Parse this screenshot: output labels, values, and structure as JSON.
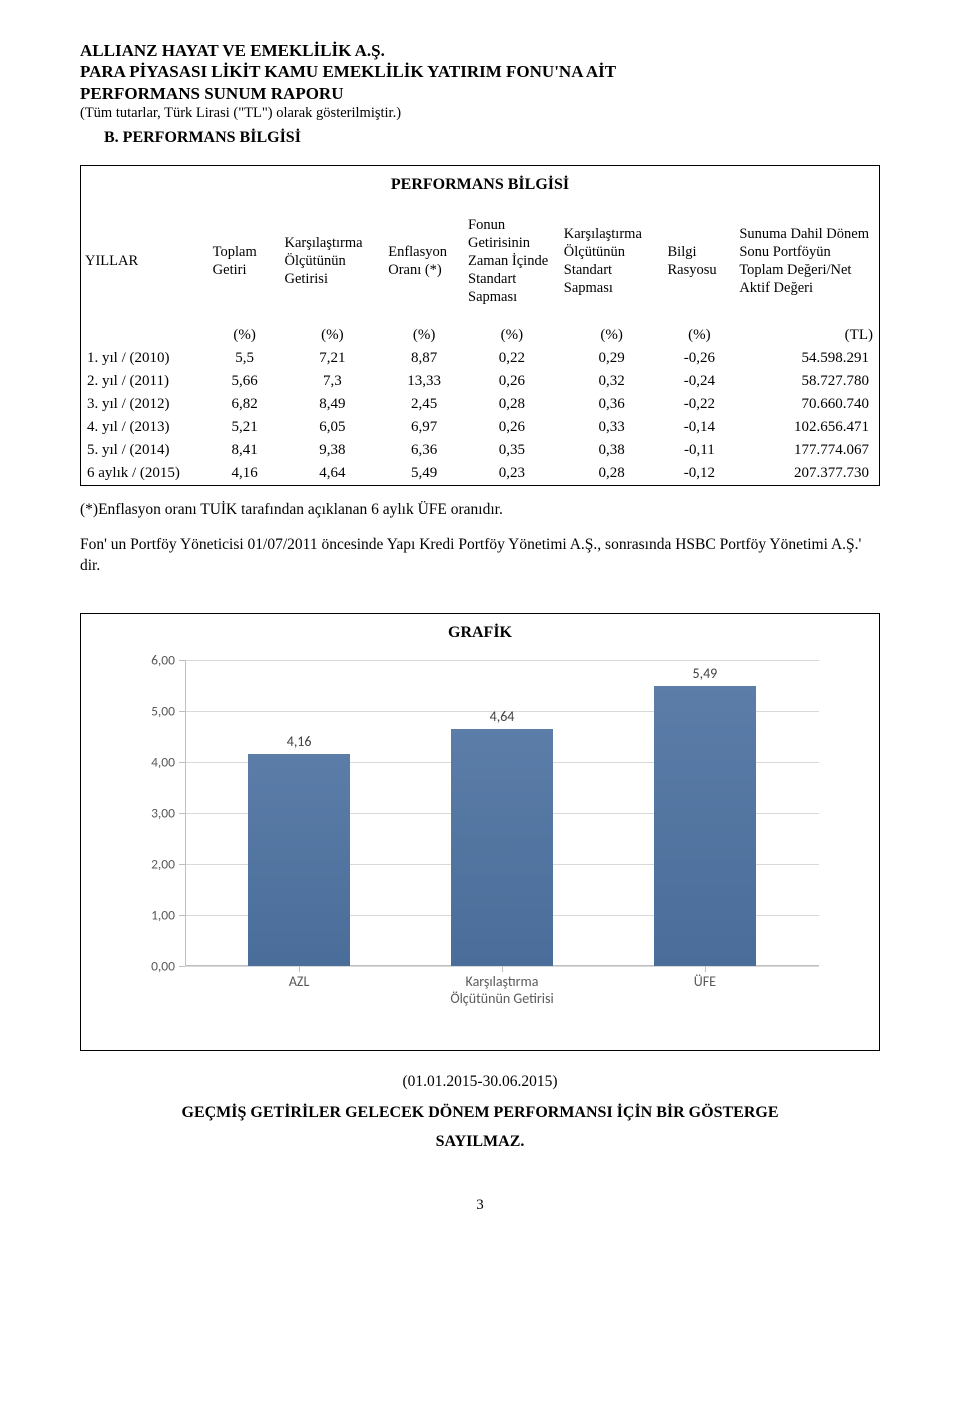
{
  "header": {
    "line1": "ALLIANZ HAYAT VE EMEKLİLİK A.Ş.",
    "line2": "PARA PİYASASI LİKİT KAMU EMEKLİLİK YATIRIM FONU'NA AİT",
    "line3": "PERFORMANS SUNUM RAPORU",
    "sub": "(Tüm tutarlar, Türk Lirasi (\"TL\") olarak gösterilmiştir.)"
  },
  "section_b": "B. PERFORMANS BİLGİSİ",
  "perf_title": "PERFORMANS BİLGİSİ",
  "columns": [
    "YILLAR",
    "Toplam Getiri",
    "Karşılaştırma Ölçütünün Getirisi",
    "Enflasyon Oranı (*)",
    "Fonun Getirisinin Zaman İçinde Standart Sapması",
    "Karşılaştırma Ölçütünün Standart Sapması",
    "Bilgi Rasyosu",
    "Sunuma Dahil Dönem Sonu Portföyün Toplam Değeri/Net Aktif Değeri"
  ],
  "units": [
    "",
    "(%)",
    "(%)",
    "(%)",
    "(%)",
    "(%)",
    "(%)",
    "(TL)"
  ],
  "rows": [
    {
      "label": "1. yıl / (2010)",
      "c": [
        "5,5",
        "7,21",
        "8,87",
        "0,22",
        "0,29",
        "-0,26",
        "54.598.291"
      ]
    },
    {
      "label": "2. yıl / (2011)",
      "c": [
        "5,66",
        "7,3",
        "13,33",
        "0,26",
        "0,32",
        "-0,24",
        "58.727.780"
      ]
    },
    {
      "label": "3. yıl / (2012)",
      "c": [
        "6,82",
        "8,49",
        "2,45",
        "0,28",
        "0,36",
        "-0,22",
        "70.660.740"
      ]
    },
    {
      "label": "4. yıl / (2013)",
      "c": [
        "5,21",
        "6,05",
        "6,97",
        "0,26",
        "0,33",
        "-0,14",
        "102.656.471"
      ]
    },
    {
      "label": "5. yıl / (2014)",
      "c": [
        "8,41",
        "9,38",
        "6,36",
        "0,35",
        "0,38",
        "-0,11",
        "177.774.067"
      ]
    },
    {
      "label": "6 aylık / (2015)",
      "c": [
        "4,16",
        "4,64",
        "5,49",
        "0,23",
        "0,28",
        "-0,12",
        "207.377.730"
      ]
    }
  ],
  "notes": {
    "p1": "(*)Enflasyon oranı TUİK tarafından açıklanan 6 aylık ÜFE oranıdır.",
    "p2": "Fon' un Portföy Yöneticisi 01/07/2011 öncesinde Yapı Kredi Portföy Yönetimi A.Ş., sonrasında HSBC Portföy Yönetimi A.Ş.' dir."
  },
  "chart": {
    "title": "GRAFİK",
    "type": "bar",
    "categories": [
      "AZL",
      "Karşılaştırma\nÖlçütünün Getirisi",
      "ÜFE"
    ],
    "values": [
      4.16,
      4.64,
      5.49
    ],
    "value_labels": [
      "4,16",
      "4,64",
      "5,49"
    ],
    "ylim": [
      0,
      6
    ],
    "ytick_step": 1,
    "ytick_labels": [
      "0,00",
      "1,00",
      "2,00",
      "3,00",
      "4,00",
      "5,00",
      "6,00"
    ],
    "bar_fill_top": "#5b7da8",
    "bar_fill_bottom": "#4a6d99",
    "grid_color": "#d9d9d9",
    "axis_color": "#bfbfbf",
    "background_color": "#ffffff",
    "bar_width_pct": 16,
    "bar_positions_pct": [
      18,
      50,
      82
    ],
    "label_fontsize": 14,
    "tick_fontsize": 13.5,
    "font_family": "Calibri"
  },
  "date_range": "(01.01.2015-30.06.2015)",
  "disclaimer_l1": "GEÇMİŞ GETİRİLER GELECEK DÖNEM PERFORMANSI İÇİN BİR GÖSTERGE",
  "disclaimer_l2": "SAYILMAZ.",
  "page_num": "3"
}
